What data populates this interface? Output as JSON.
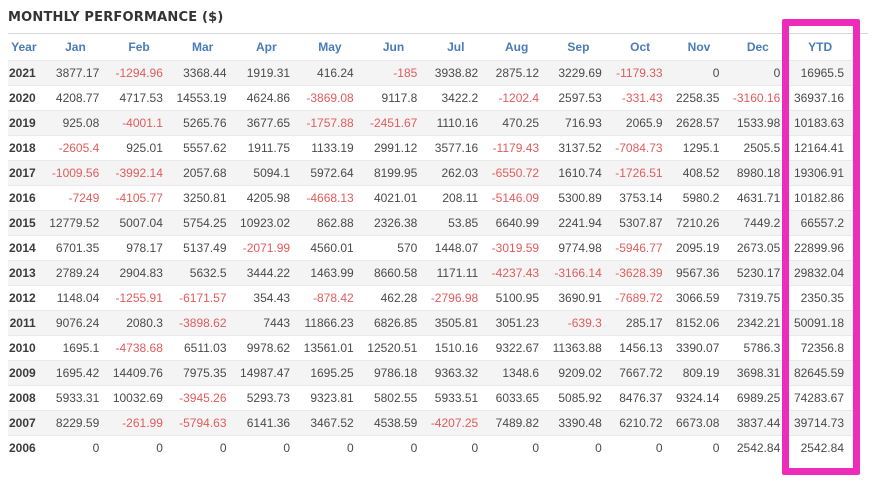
{
  "title": "MONTHLY PERFORMANCE ($)",
  "chart_data": {
    "type": "table",
    "title": "MONTHLY PERFORMANCE ($)",
    "columns": [
      "Year",
      "Jan",
      "Feb",
      "Mar",
      "Apr",
      "May",
      "Jun",
      "Jul",
      "Aug",
      "Sep",
      "Oct",
      "Nov",
      "Dec",
      "YTD"
    ],
    "rows": [
      [
        "2021",
        "3877.17",
        "-1294.96",
        "3368.44",
        "1919.31",
        "416.24",
        "-185",
        "3938.82",
        "2875.12",
        "3229.69",
        "-1179.33",
        "0",
        "0",
        "16965.5"
      ],
      [
        "2020",
        "4208.77",
        "4717.53",
        "14553.19",
        "4624.86",
        "-3869.08",
        "9117.8",
        "3422.2",
        "-1202.4",
        "2597.53",
        "-331.43",
        "2258.35",
        "-3160.16",
        "36937.16"
      ],
      [
        "2019",
        "925.08",
        "-4001.1",
        "5265.76",
        "3677.65",
        "-1757.88",
        "-2451.67",
        "1110.16",
        "470.25",
        "716.93",
        "2065.9",
        "2628.57",
        "1533.98",
        "10183.63"
      ],
      [
        "2018",
        "-2605.4",
        "925.01",
        "5557.62",
        "1911.75",
        "1133.19",
        "2991.12",
        "3577.16",
        "-1179.43",
        "3137.52",
        "-7084.73",
        "1295.1",
        "2505.5",
        "12164.41"
      ],
      [
        "2017",
        "-1009.56",
        "-3992.14",
        "2057.68",
        "5094.1",
        "5972.64",
        "8199.95",
        "262.03",
        "-6550.72",
        "1610.74",
        "-1726.51",
        "408.52",
        "8980.18",
        "19306.91"
      ],
      [
        "2016",
        "-7249",
        "-4105.77",
        "3250.81",
        "4205.98",
        "-4668.13",
        "4021.01",
        "208.11",
        "-5146.09",
        "5300.89",
        "3753.14",
        "5980.2",
        "4631.71",
        "10182.86"
      ],
      [
        "2015",
        "12779.52",
        "5007.04",
        "5754.25",
        "10923.02",
        "862.88",
        "2326.38",
        "53.85",
        "6640.99",
        "2241.94",
        "5307.87",
        "7210.26",
        "7449.2",
        "66557.2"
      ],
      [
        "2014",
        "6701.35",
        "978.17",
        "5137.49",
        "-2071.99",
        "4560.01",
        "570",
        "1448.07",
        "-3019.59",
        "9774.98",
        "-5946.77",
        "2095.19",
        "2673.05",
        "22899.96"
      ],
      [
        "2013",
        "2789.24",
        "2904.83",
        "5632.5",
        "3444.22",
        "1463.99",
        "8660.58",
        "1171.11",
        "-4237.43",
        "-3166.14",
        "-3628.39",
        "9567.36",
        "5230.17",
        "29832.04"
      ],
      [
        "2012",
        "1148.04",
        "-1255.91",
        "-6171.57",
        "354.43",
        "-878.42",
        "462.28",
        "-2796.98",
        "5100.95",
        "3690.91",
        "-7689.72",
        "3066.59",
        "7319.75",
        "2350.35"
      ],
      [
        "2011",
        "9076.24",
        "2080.3",
        "-3898.62",
        "7443",
        "11866.23",
        "6826.85",
        "3505.81",
        "3051.23",
        "-639.3",
        "285.17",
        "8152.06",
        "2342.21",
        "50091.18"
      ],
      [
        "2010",
        "1695.1",
        "-4738.68",
        "6511.03",
        "9978.62",
        "13561.01",
        "12520.51",
        "1510.16",
        "9322.67",
        "11363.88",
        "1456.13",
        "3390.07",
        "5786.3",
        "72356.8"
      ],
      [
        "2009",
        "1695.42",
        "14409.76",
        "7975.35",
        "14987.47",
        "1695.25",
        "9786.18",
        "9363.32",
        "1348.6",
        "9209.02",
        "7667.72",
        "809.19",
        "3698.31",
        "82645.59"
      ],
      [
        "2008",
        "5933.31",
        "10032.69",
        "-3945.26",
        "5293.73",
        "9323.81",
        "5802.55",
        "5933.51",
        "6033.65",
        "5085.92",
        "8476.37",
        "9324.14",
        "6989.25",
        "74283.67"
      ],
      [
        "2007",
        "8229.59",
        "-261.99",
        "-5794.63",
        "6141.36",
        "3467.52",
        "4538.59",
        "-4207.25",
        "7489.82",
        "3390.48",
        "6210.72",
        "6673.08",
        "3837.44",
        "39714.73"
      ],
      [
        "2006",
        "0",
        "0",
        "0",
        "0",
        "0",
        "0",
        "0",
        "0",
        "0",
        "0",
        "0",
        "2542.84",
        "2542.84"
      ]
    ],
    "highlighted_column": "YTD",
    "layout_hints": {
      "striped_rows": true,
      "negative_values_in_red": true
    }
  },
  "colors": {
    "header_text": "#4a7cb8",
    "positive_value": "#4a4a4a",
    "negative_value": "#e05c5c",
    "row_stripe": "#f4f4f4",
    "highlight_box": "#ed2cbb",
    "title_text": "#333333"
  }
}
